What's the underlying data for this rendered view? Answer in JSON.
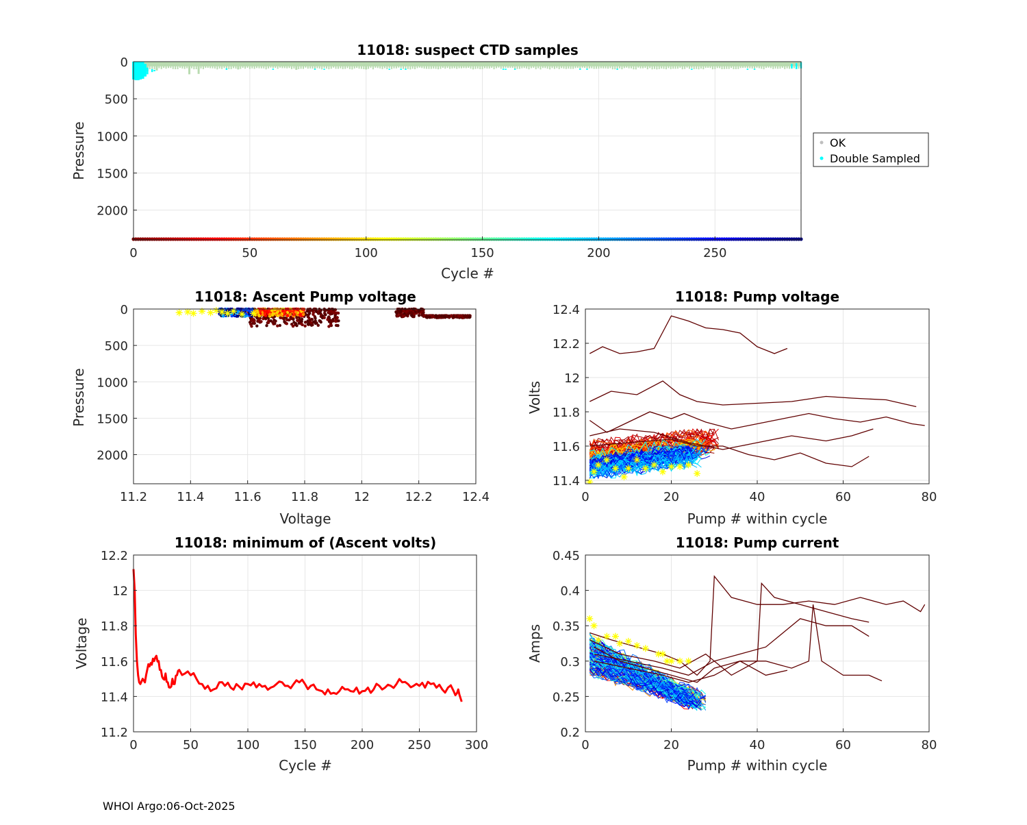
{
  "footer": "WHOI Argo:06-Oct-2025",
  "colors": {
    "ok": "#b9dbb0",
    "double": "#00ffff",
    "legend_ok_marker": "#bfbfbf",
    "red": "#ff0000",
    "yellow": "#ffff00",
    "dark": "#600000",
    "grid": "#e6e6e6",
    "axis": "#262626"
  },
  "chart_data": [
    {
      "id": "suspect",
      "type": "scatter",
      "title": "11018: suspect CTD samples",
      "xlabel": "Cycle #",
      "ylabel": "Pressure",
      "xlim": [
        0,
        287
      ],
      "ylim": [
        0,
        2400
      ],
      "y_reversed": true,
      "xticks": [
        0,
        50,
        100,
        150,
        200,
        250
      ],
      "yticks": [
        0,
        500,
        1000,
        1500,
        2000
      ],
      "legend": {
        "position": "outside-right",
        "entries": [
          "OK",
          "Double Sampled"
        ]
      },
      "ok_band": {
        "pressure_range": [
          0,
          100
        ],
        "note": "dense OK samples every cycle in upper ~100 dbar"
      },
      "ok_spikes": [
        {
          "cycle": 3,
          "pressure": 150
        },
        {
          "cycle": 6,
          "pressure": 130
        },
        {
          "cycle": 10,
          "pressure": 120
        },
        {
          "cycle": 24,
          "pressure": 170
        },
        {
          "cycle": 28,
          "pressure": 165
        },
        {
          "cycle": 45,
          "pressure": 105
        },
        {
          "cycle": 70,
          "pressure": 110
        },
        {
          "cycle": 100,
          "pressure": 105
        }
      ],
      "double_sampled": [
        {
          "cycle": 0,
          "pmin": 0,
          "pmax": 240
        },
        {
          "cycle": 1,
          "pmin": 0,
          "pmax": 250
        },
        {
          "cycle": 2,
          "pmin": 0,
          "pmax": 250
        },
        {
          "cycle": 3,
          "pmin": 0,
          "pmax": 240
        },
        {
          "cycle": 4,
          "pmin": 0,
          "pmax": 230
        },
        {
          "cycle": 5,
          "pmin": 30,
          "pmax": 200
        },
        {
          "cycle": 6,
          "pmin": 80,
          "pmax": 170
        },
        {
          "cycle": 8,
          "pmin": 100,
          "pmax": 140
        },
        {
          "cycle": 9,
          "pmin": 110,
          "pmax": 130
        },
        {
          "cycle": 40,
          "pmin": 90,
          "pmax": 110
        },
        {
          "cycle": 60,
          "pmin": 95,
          "pmax": 110
        },
        {
          "cycle": 78,
          "pmin": 95,
          "pmax": 110
        },
        {
          "cycle": 82,
          "pmin": 95,
          "pmax": 110
        },
        {
          "cycle": 110,
          "pmin": 95,
          "pmax": 110
        },
        {
          "cycle": 115,
          "pmin": 95,
          "pmax": 110
        },
        {
          "cycle": 117,
          "pmin": 95,
          "pmax": 110
        },
        {
          "cycle": 159,
          "pmin": 95,
          "pmax": 110
        },
        {
          "cycle": 160,
          "pmin": 95,
          "pmax": 110
        },
        {
          "cycle": 164,
          "pmin": 95,
          "pmax": 110
        },
        {
          "cycle": 192,
          "pmin": 95,
          "pmax": 110
        },
        {
          "cycle": 195,
          "pmin": 95,
          "pmax": 110
        },
        {
          "cycle": 208,
          "pmin": 95,
          "pmax": 110
        },
        {
          "cycle": 240,
          "pmin": 95,
          "pmax": 110
        },
        {
          "cycle": 264,
          "pmin": 95,
          "pmax": 110
        },
        {
          "cycle": 267,
          "pmin": 95,
          "pmax": 110
        },
        {
          "cycle": 283,
          "pmin": 30,
          "pmax": 90
        },
        {
          "cycle": 285,
          "pmin": 20,
          "pmax": 100
        },
        {
          "cycle": 287,
          "pmin": 10,
          "pmax": 90
        }
      ],
      "cycle_colorbar_pressure": 2400,
      "cycle_colormap": "jet reversed (cycle 0 dark red, cycle 287 dark blue)"
    },
    {
      "id": "ascent_voltage",
      "type": "scatter",
      "title": "11018: Ascent Pump voltage",
      "xlabel": "Voltage",
      "ylabel": "Pressure",
      "xlim": [
        11.2,
        12.4
      ],
      "ylim": [
        0,
        2400
      ],
      "y_reversed": true,
      "xticks": [
        11.2,
        11.4,
        11.6,
        11.8,
        12,
        12.2,
        12.4
      ],
      "xtick_labels": [
        "11.2",
        "11.4",
        "11.6",
        "11.8",
        "12",
        "12.2",
        "12.4"
      ],
      "yticks": [
        0,
        500,
        1000,
        1500,
        2000
      ],
      "clusters": [
        {
          "group": "late",
          "vmin": 11.5,
          "vmax": 11.62,
          "pmin": 0,
          "pmax": 100
        },
        {
          "group": "mid",
          "vmin": 11.58,
          "vmax": 11.8,
          "pmin": 0,
          "pmax": 100
        },
        {
          "group": "early",
          "vmin": 11.6,
          "vmax": 11.92,
          "pmin": 0,
          "pmax": 240
        },
        {
          "group": "early",
          "vmin": 12.12,
          "vmax": 12.22,
          "pmin": 0,
          "pmax": 110
        },
        {
          "group": "early",
          "vmin": 12.22,
          "vmax": 12.38,
          "pmin": 90,
          "pmax": 120
        }
      ],
      "min_markers": [
        {
          "v": 11.36,
          "p": 50
        },
        {
          "v": 11.39,
          "p": 40
        },
        {
          "v": 11.41,
          "p": 60
        },
        {
          "v": 11.44,
          "p": 30
        },
        {
          "v": 11.47,
          "p": 50
        },
        {
          "v": 11.49,
          "p": 20
        },
        {
          "v": 11.51,
          "p": 40
        },
        {
          "v": 11.53,
          "p": 60
        },
        {
          "v": 11.55,
          "p": 30
        },
        {
          "v": 11.58,
          "p": 70
        },
        {
          "v": 11.62,
          "p": 60
        }
      ]
    },
    {
      "id": "pump_voltage",
      "type": "line",
      "title": "11018: Pump voltage",
      "xlabel": "Pump # within cycle",
      "ylabel": "Volts",
      "xlim": [
        0,
        80
      ],
      "ylim": [
        11.38,
        12.4
      ],
      "xticks": [
        0,
        20,
        40,
        60,
        80
      ],
      "yticks": [
        11.4,
        11.6,
        11.8,
        12,
        12.2,
        12.4
      ],
      "ytick_labels": [
        "11.4",
        "11.6",
        "11.8",
        "12",
        "12.2",
        "12.4"
      ],
      "envelope": {
        "late": {
          "max_pump": 26,
          "vmin": 11.43,
          "vmax": 11.6
        },
        "mid": {
          "max_pump": 28,
          "vmin": 11.48,
          "vmax": 11.64
        },
        "early": {
          "max_pump": 30,
          "vmin": 11.5,
          "vmax": 11.7
        }
      },
      "dark_series": [
        {
          "x": [
            1,
            4,
            8,
            12,
            16,
            20,
            24,
            28,
            32,
            36,
            40,
            44,
            47
          ],
          "y": [
            12.14,
            12.18,
            12.14,
            12.15,
            12.17,
            12.36,
            12.33,
            12.29,
            12.28,
            12.26,
            12.18,
            12.14,
            12.17
          ]
        },
        {
          "x": [
            1,
            6,
            12,
            18,
            22,
            26,
            32,
            40,
            48,
            56,
            62,
            70,
            77
          ],
          "y": [
            11.86,
            11.92,
            11.9,
            11.98,
            11.9,
            11.86,
            11.84,
            11.85,
            11.86,
            11.89,
            11.88,
            11.87,
            11.83
          ]
        },
        {
          "x": [
            1,
            5,
            10,
            15,
            20,
            23,
            28,
            34,
            40,
            46,
            52,
            58,
            64,
            70,
            76,
            79
          ],
          "y": [
            11.75,
            11.68,
            11.74,
            11.8,
            11.76,
            11.79,
            11.74,
            11.7,
            11.73,
            11.76,
            11.79,
            11.76,
            11.74,
            11.77,
            11.73,
            11.72
          ]
        },
        {
          "x": [
            1,
            8,
            16,
            24,
            32,
            40,
            48,
            56,
            62,
            67
          ],
          "y": [
            11.66,
            11.7,
            11.68,
            11.62,
            11.58,
            11.62,
            11.66,
            11.63,
            11.66,
            11.7
          ]
        },
        {
          "x": [
            1,
            10,
            20,
            26,
            32,
            38,
            44,
            50,
            56,
            62,
            66
          ],
          "y": [
            11.6,
            11.62,
            11.64,
            11.6,
            11.6,
            11.55,
            11.52,
            11.56,
            11.5,
            11.48,
            11.54
          ]
        }
      ],
      "min_markers": [
        {
          "x": 1,
          "y": 11.39
        },
        {
          "x": 2,
          "y": 11.45
        },
        {
          "x": 3,
          "y": 11.49
        },
        {
          "x": 5,
          "y": 11.52
        },
        {
          "x": 7,
          "y": 11.47
        },
        {
          "x": 9,
          "y": 11.42
        },
        {
          "x": 10,
          "y": 11.47
        },
        {
          "x": 12,
          "y": 11.52
        },
        {
          "x": 14,
          "y": 11.47
        },
        {
          "x": 16,
          "y": 11.49
        },
        {
          "x": 18,
          "y": 11.45
        },
        {
          "x": 20,
          "y": 11.48
        },
        {
          "x": 22,
          "y": 11.48
        },
        {
          "x": 24,
          "y": 11.49
        },
        {
          "x": 26,
          "y": 11.44
        }
      ]
    },
    {
      "id": "min_voltage",
      "type": "line",
      "title": "11018: minimum of (Ascent volts)",
      "xlabel": "Cycle #",
      "ylabel": "Voltage",
      "xlim": [
        0,
        300
      ],
      "ylim": [
        11.2,
        12.2
      ],
      "xticks": [
        0,
        50,
        100,
        150,
        200,
        250,
        300
      ],
      "yticks": [
        11.2,
        11.4,
        11.6,
        11.8,
        12,
        12.2
      ],
      "ytick_labels": [
        "11.2",
        "11.4",
        "11.6",
        "11.8",
        "12",
        "12.2"
      ],
      "x": [
        0,
        1,
        2,
        3,
        4,
        5,
        6,
        8,
        10,
        12,
        14,
        16,
        18,
        20,
        22,
        24,
        26,
        28,
        30,
        32,
        34,
        36,
        38,
        40,
        45,
        50,
        55,
        60,
        65,
        70,
        75,
        80,
        85,
        90,
        95,
        100,
        105,
        110,
        115,
        120,
        125,
        130,
        135,
        140,
        145,
        150,
        155,
        160,
        165,
        170,
        175,
        180,
        185,
        190,
        195,
        200,
        205,
        210,
        215,
        220,
        225,
        230,
        235,
        240,
        245,
        250,
        255,
        260,
        265,
        270,
        275,
        280,
        283,
        285,
        287
      ],
      "y": [
        12.12,
        12.0,
        11.75,
        11.6,
        11.52,
        11.48,
        11.47,
        11.5,
        11.48,
        11.55,
        11.57,
        11.58,
        11.6,
        11.63,
        11.6,
        11.55,
        11.5,
        11.53,
        11.48,
        11.45,
        11.5,
        11.47,
        11.52,
        11.55,
        11.53,
        11.52,
        11.5,
        11.47,
        11.46,
        11.44,
        11.48,
        11.46,
        11.45,
        11.47,
        11.44,
        11.47,
        11.48,
        11.47,
        11.46,
        11.45,
        11.47,
        11.48,
        11.46,
        11.47,
        11.48,
        11.47,
        11.46,
        11.44,
        11.43,
        11.44,
        11.42,
        11.43,
        11.44,
        11.43,
        11.45,
        11.43,
        11.45,
        11.44,
        11.46,
        11.45,
        11.46,
        11.47,
        11.48,
        11.47,
        11.46,
        11.46,
        11.45,
        11.47,
        11.45,
        11.44,
        11.45,
        11.43,
        11.42,
        11.41,
        11.37
      ]
    },
    {
      "id": "pump_current",
      "type": "line",
      "title": "11018: Pump current",
      "xlabel": "Pump # within cycle",
      "ylabel": "Amps",
      "xlim": [
        0,
        80
      ],
      "ylim": [
        0.2,
        0.45
      ],
      "xticks": [
        0,
        20,
        40,
        60,
        80
      ],
      "yticks": [
        0.2,
        0.25,
        0.3,
        0.35,
        0.4,
        0.45
      ],
      "ytick_labels": [
        "0.2",
        "0.25",
        "0.3",
        "0.35",
        "0.4",
        "0.45"
      ],
      "envelope": {
        "start_range": [
          0.285,
          0.36
        ],
        "end_pump": 27,
        "end_range": [
          0.232,
          0.255
        ]
      },
      "dark_series": [
        {
          "x": [
            1,
            6,
            12,
            18,
            22,
            26,
            29,
            30,
            34,
            40,
            46,
            52,
            58,
            64,
            70,
            74,
            78,
            79
          ],
          "y": [
            0.34,
            0.33,
            0.32,
            0.31,
            0.3,
            0.28,
            0.3,
            0.42,
            0.39,
            0.38,
            0.38,
            0.385,
            0.38,
            0.39,
            0.38,
            0.385,
            0.37,
            0.38
          ]
        },
        {
          "x": [
            1,
            8,
            16,
            22,
            28,
            34,
            40,
            41,
            44,
            50,
            56,
            62,
            66
          ],
          "y": [
            0.33,
            0.31,
            0.3,
            0.29,
            0.31,
            0.28,
            0.3,
            0.41,
            0.39,
            0.38,
            0.37,
            0.36,
            0.355
          ]
        },
        {
          "x": [
            2,
            8,
            14,
            20,
            26,
            30,
            36,
            42,
            48,
            52,
            53,
            55,
            60,
            66,
            69
          ],
          "y": [
            0.32,
            0.3,
            0.29,
            0.28,
            0.27,
            0.29,
            0.3,
            0.3,
            0.29,
            0.3,
            0.38,
            0.3,
            0.28,
            0.28,
            0.272
          ]
        },
        {
          "x": [
            2,
            10,
            18,
            24,
            30,
            36,
            42,
            46,
            50,
            56,
            62,
            66
          ],
          "y": [
            0.31,
            0.3,
            0.29,
            0.28,
            0.3,
            0.31,
            0.32,
            0.34,
            0.36,
            0.35,
            0.35,
            0.335
          ]
        },
        {
          "x": [
            2,
            10,
            18,
            24,
            30,
            36,
            42,
            47
          ],
          "y": [
            0.3,
            0.29,
            0.28,
            0.27,
            0.28,
            0.3,
            0.28,
            0.287
          ]
        }
      ],
      "min_markers": [
        {
          "x": 1,
          "y": 0.36
        },
        {
          "x": 2,
          "y": 0.35
        },
        {
          "x": 3,
          "y": 0.33
        },
        {
          "x": 5,
          "y": 0.335
        },
        {
          "x": 7,
          "y": 0.335
        },
        {
          "x": 8,
          "y": 0.325
        },
        {
          "x": 10,
          "y": 0.328
        },
        {
          "x": 12,
          "y": 0.322
        },
        {
          "x": 14,
          "y": 0.318
        },
        {
          "x": 17,
          "y": 0.31
        },
        {
          "x": 18,
          "y": 0.31
        },
        {
          "x": 19,
          "y": 0.3
        },
        {
          "x": 20,
          "y": 0.3
        },
        {
          "x": 22,
          "y": 0.3
        },
        {
          "x": 24,
          "y": 0.3
        }
      ]
    }
  ]
}
